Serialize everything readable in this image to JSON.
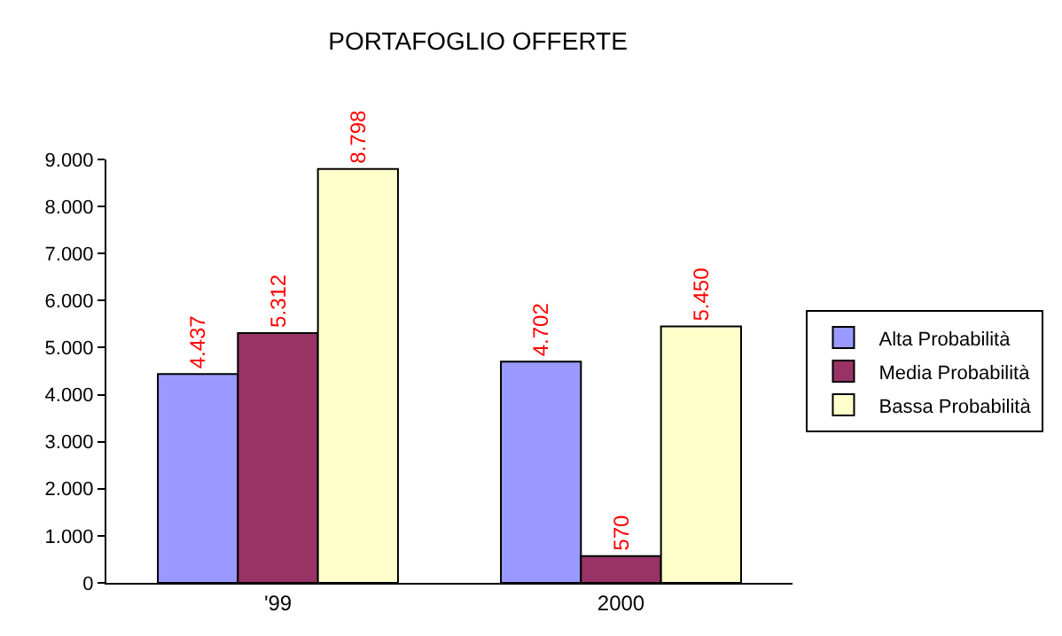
{
  "chart_data": {
    "type": "bar",
    "title": "PORTAFOGLIO OFFERTE",
    "categories": [
      "'99",
      "2000"
    ],
    "series": [
      {
        "name": "Alta Probabilità",
        "color": "#9999ff",
        "values": [
          4437,
          4702
        ],
        "value_labels": [
          "4.437",
          "4.702"
        ]
      },
      {
        "name": "Media Probabilità",
        "color": "#993366",
        "values": [
          5312,
          570
        ],
        "value_labels": [
          "5.312",
          "570"
        ]
      },
      {
        "name": "Bassa Probabilità",
        "color": "#ffffcc",
        "values": [
          8798,
          5450
        ],
        "value_labels": [
          "8.798",
          "5.450"
        ]
      }
    ],
    "ylim": [
      0,
      9000
    ],
    "yticks": [
      0,
      {
        "value": 1000,
        "label": "1.000"
      },
      {
        "value": 2000,
        "label": "2.000"
      },
      {
        "value": 3000,
        "label": "3.000"
      },
      {
        "value": 4000,
        "label": "4.000"
      },
      {
        "value": 5000,
        "label": "5.000"
      },
      {
        "value": 6000,
        "label": "6.000"
      },
      {
        "value": 7000,
        "label": "7.000"
      },
      {
        "value": 8000,
        "label": "8.000"
      },
      {
        "value": 9000,
        "label": "9.000"
      }
    ],
    "grid": false,
    "legend": "right"
  }
}
